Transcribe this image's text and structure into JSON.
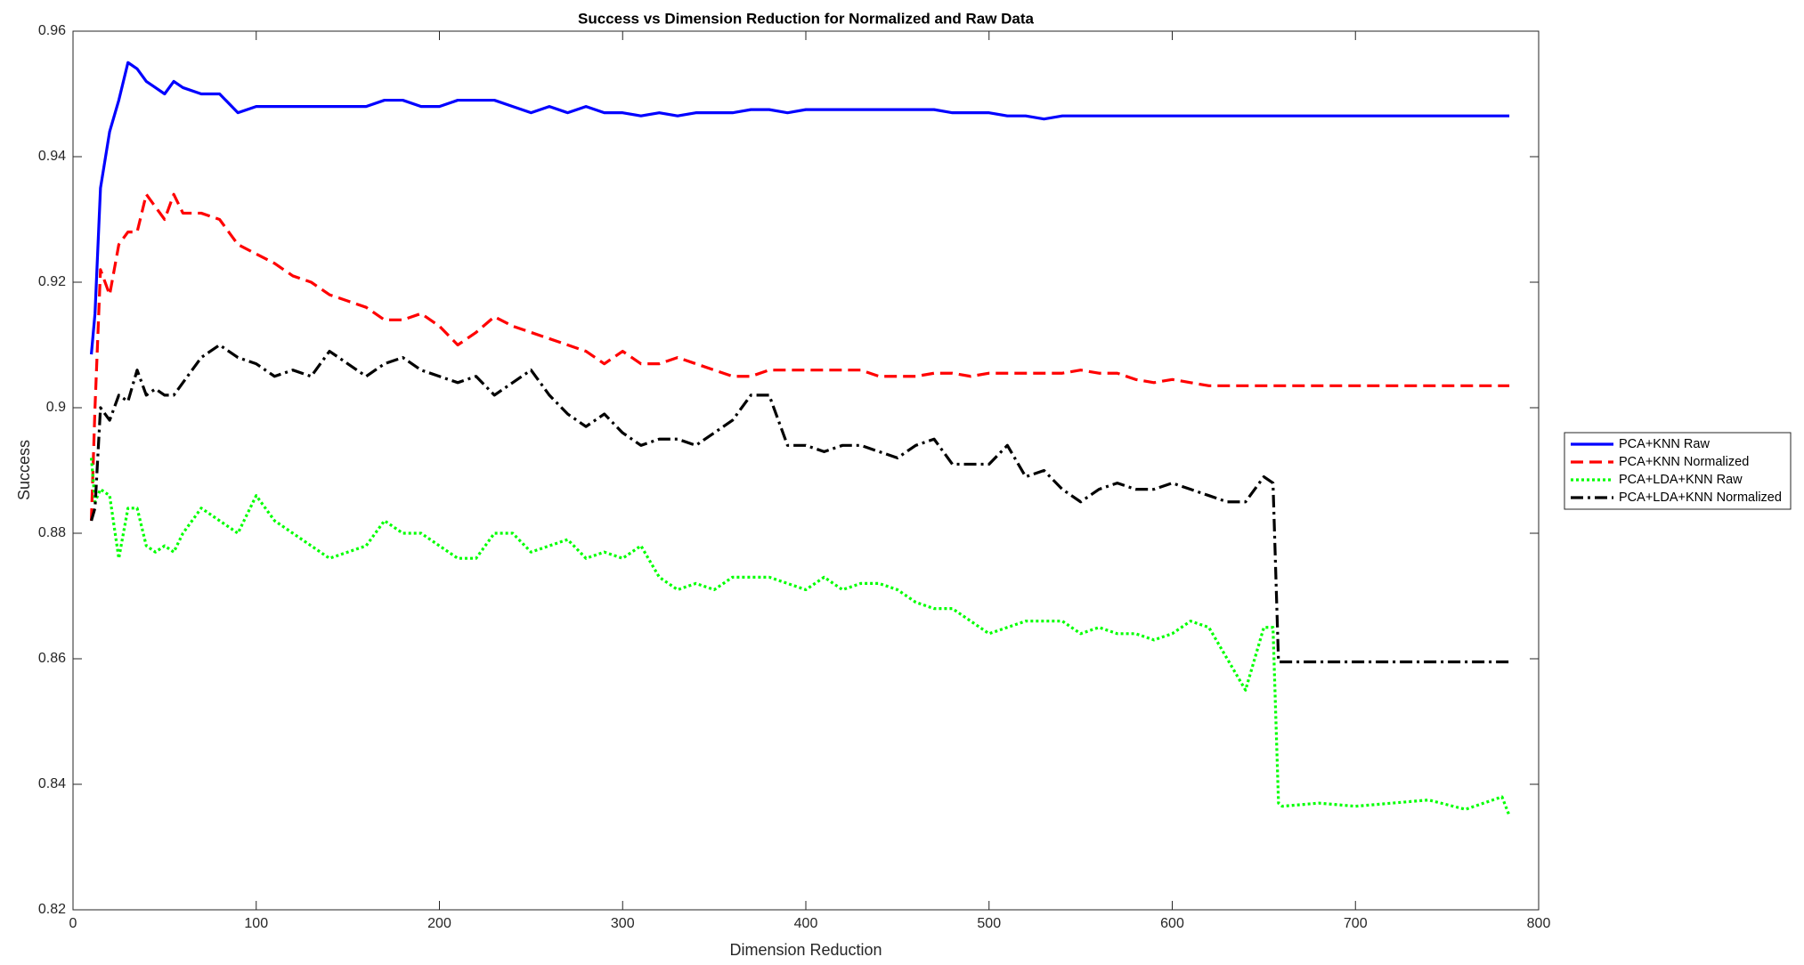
{
  "chart_data": {
    "type": "line",
    "title": "Success vs Dimension Reduction for Normalized and Raw Data",
    "xlabel": "Dimension Reduction",
    "ylabel": "Success",
    "x": [
      10,
      12,
      15,
      20,
      25,
      30,
      35,
      40,
      45,
      50,
      55,
      60,
      70,
      80,
      90,
      100,
      110,
      120,
      130,
      140,
      150,
      160,
      170,
      180,
      190,
      200,
      210,
      220,
      230,
      240,
      250,
      260,
      270,
      280,
      290,
      300,
      310,
      320,
      330,
      340,
      350,
      360,
      370,
      380,
      390,
      400,
      410,
      420,
      430,
      440,
      450,
      460,
      470,
      480,
      490,
      500,
      510,
      520,
      530,
      540,
      550,
      560,
      570,
      580,
      590,
      600,
      610,
      620,
      630,
      640,
      650,
      655,
      658,
      660,
      680,
      700,
      720,
      740,
      760,
      780,
      784
    ],
    "series": [
      {
        "name": "PCA+KNN Raw",
        "color": "#0000ff",
        "linestyle": "solid",
        "values": [
          0.9085,
          0.915,
          0.935,
          0.944,
          0.949,
          0.955,
          0.954,
          0.952,
          0.951,
          0.95,
          0.952,
          0.951,
          0.95,
          0.95,
          0.947,
          0.948,
          0.948,
          0.948,
          0.948,
          0.948,
          0.948,
          0.948,
          0.949,
          0.949,
          0.948,
          0.948,
          0.949,
          0.949,
          0.949,
          0.948,
          0.947,
          0.948,
          0.947,
          0.948,
          0.947,
          0.947,
          0.9465,
          0.947,
          0.9465,
          0.947,
          0.947,
          0.947,
          0.9475,
          0.9475,
          0.947,
          0.9475,
          0.9475,
          0.9475,
          0.9475,
          0.9475,
          0.9475,
          0.9475,
          0.9475,
          0.947,
          0.947,
          0.947,
          0.9465,
          0.9465,
          0.946,
          0.9465,
          0.9465,
          0.9465,
          0.9465,
          0.9465,
          0.9465,
          0.9465,
          0.9465,
          0.9465,
          0.9465,
          0.9465,
          0.9465,
          0.9465,
          0.9465,
          0.9465,
          0.9465,
          0.9465,
          0.9465,
          0.9465,
          0.9465,
          0.9465,
          0.9465
        ]
      },
      {
        "name": "PCA+KNN Normalized",
        "color": "#ff0000",
        "linestyle": "dashed",
        "values": [
          0.882,
          0.9,
          0.922,
          0.918,
          0.926,
          0.928,
          0.928,
          0.934,
          0.932,
          0.93,
          0.934,
          0.931,
          0.931,
          0.93,
          0.926,
          0.9245,
          0.923,
          0.921,
          0.92,
          0.918,
          0.917,
          0.916,
          0.914,
          0.914,
          0.915,
          0.913,
          0.91,
          0.912,
          0.9145,
          0.913,
          0.912,
          0.911,
          0.91,
          0.909,
          0.907,
          0.909,
          0.907,
          0.907,
          0.908,
          0.907,
          0.906,
          0.905,
          0.905,
          0.906,
          0.906,
          0.906,
          0.906,
          0.906,
          0.906,
          0.905,
          0.905,
          0.905,
          0.9055,
          0.9055,
          0.905,
          0.9055,
          0.9055,
          0.9055,
          0.9055,
          0.9055,
          0.906,
          0.9055,
          0.9055,
          0.9045,
          0.904,
          0.9045,
          0.904,
          0.9035,
          0.9035,
          0.9035,
          0.9035,
          0.9035,
          0.9035,
          0.9035,
          0.9035,
          0.9035,
          0.9035,
          0.9035,
          0.9035,
          0.9035,
          0.9035
        ]
      },
      {
        "name": "PCA+LDA+KNN Raw",
        "color": "#00ff00",
        "linestyle": "dotted",
        "values": [
          0.892,
          0.885,
          0.887,
          0.886,
          0.876,
          0.884,
          0.884,
          0.878,
          0.877,
          0.878,
          0.877,
          0.88,
          0.884,
          0.882,
          0.88,
          0.886,
          0.882,
          0.88,
          0.878,
          0.876,
          0.877,
          0.878,
          0.882,
          0.88,
          0.88,
          0.878,
          0.876,
          0.876,
          0.88,
          0.88,
          0.877,
          0.878,
          0.879,
          0.876,
          0.877,
          0.876,
          0.878,
          0.873,
          0.871,
          0.872,
          0.871,
          0.873,
          0.873,
          0.873,
          0.872,
          0.871,
          0.873,
          0.871,
          0.872,
          0.872,
          0.871,
          0.869,
          0.868,
          0.868,
          0.866,
          0.864,
          0.865,
          0.866,
          0.866,
          0.866,
          0.864,
          0.865,
          0.864,
          0.864,
          0.863,
          0.864,
          0.866,
          0.865,
          0.86,
          0.855,
          0.865,
          0.865,
          0.837,
          0.8365,
          0.837,
          0.8365,
          0.837,
          0.8375,
          0.836,
          0.838,
          0.835
        ]
      },
      {
        "name": "PCA+LDA+KNN Normalized",
        "color": "#000000",
        "linestyle": "dashdot",
        "values": [
          0.882,
          0.884,
          0.9,
          0.898,
          0.902,
          0.901,
          0.906,
          0.902,
          0.903,
          0.902,
          0.902,
          0.904,
          0.908,
          0.91,
          0.908,
          0.907,
          0.905,
          0.906,
          0.905,
          0.909,
          0.907,
          0.905,
          0.907,
          0.908,
          0.906,
          0.905,
          0.904,
          0.905,
          0.902,
          0.904,
          0.906,
          0.902,
          0.899,
          0.897,
          0.899,
          0.896,
          0.894,
          0.895,
          0.895,
          0.894,
          0.896,
          0.898,
          0.902,
          0.902,
          0.894,
          0.894,
          0.893,
          0.894,
          0.894,
          0.893,
          0.892,
          0.894,
          0.895,
          0.891,
          0.891,
          0.891,
          0.894,
          0.889,
          0.89,
          0.887,
          0.885,
          0.887,
          0.888,
          0.887,
          0.887,
          0.888,
          0.887,
          0.886,
          0.885,
          0.885,
          0.889,
          0.888,
          0.8595,
          0.8595,
          0.8595,
          0.8595,
          0.8595,
          0.8595,
          0.8595,
          0.8595,
          0.8595
        ]
      }
    ],
    "xlim": [
      0,
      800
    ],
    "xticks": [
      0,
      100,
      200,
      300,
      400,
      500,
      600,
      700,
      800
    ],
    "ylim": [
      0.82,
      0.96
    ],
    "yticks": [
      0.82,
      0.84,
      0.86,
      0.88,
      0.9,
      0.92,
      0.94,
      0.96
    ],
    "grid": false,
    "legend": "outside-right"
  }
}
